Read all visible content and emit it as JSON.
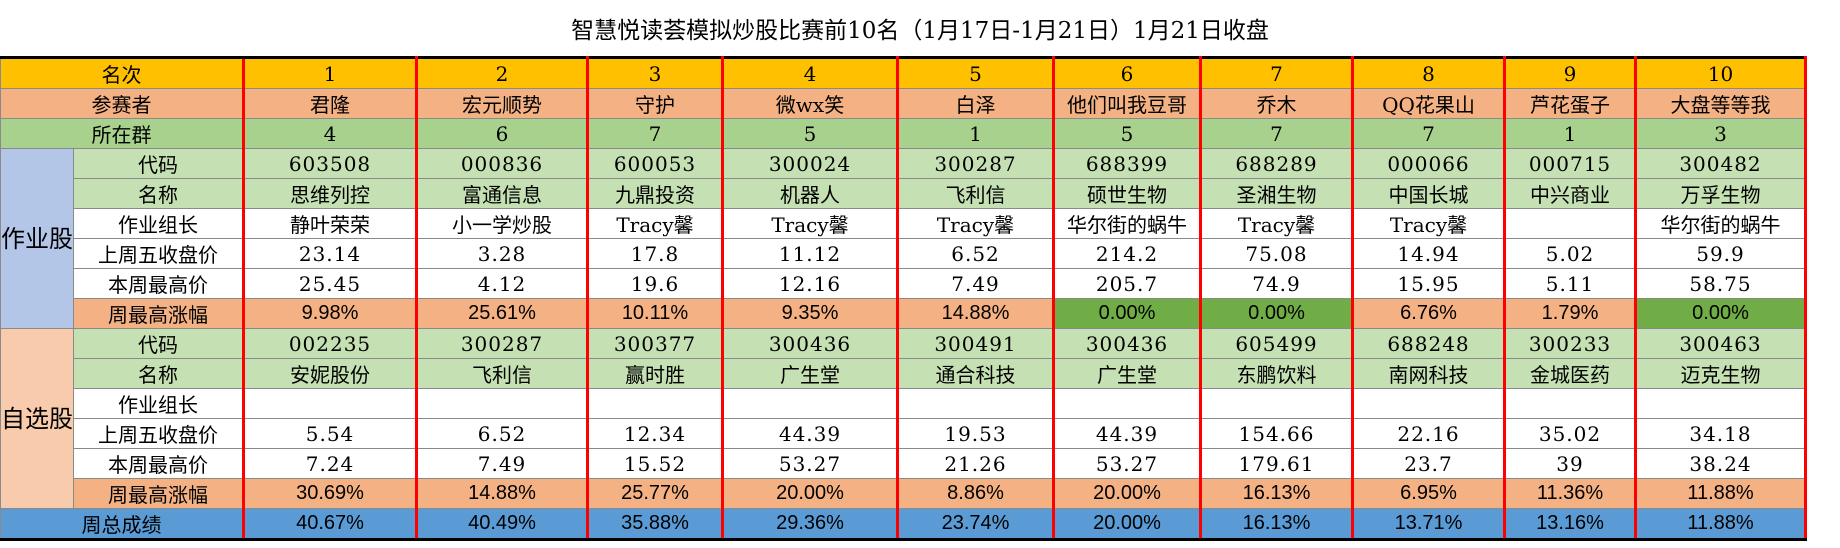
{
  "title": "智慧悦读荟模拟炒股比赛前10名（1月17日-1月21日）1月21日收盘",
  "header": {
    "rank_label": "名次",
    "player_label": "参赛者",
    "group_label": "所在群",
    "ranks": [
      "1",
      "2",
      "3",
      "4",
      "5",
      "6",
      "7",
      "8",
      "9",
      "10"
    ],
    "players": [
      "君隆",
      "宏元顺势",
      "守护",
      "微wx笑",
      "白泽",
      "他们叫我豆哥",
      "乔木",
      "QQ花果山",
      "芦花蛋子",
      "大盘等等我"
    ],
    "groups": [
      "4",
      "6",
      "7",
      "5",
      "1",
      "5",
      "7",
      "7",
      "1",
      "3"
    ]
  },
  "homework": {
    "side_label": "作业股",
    "code_label": "代码",
    "name_label": "名称",
    "leader_label": "作业组长",
    "prev_close_label": "上周五收盘价",
    "high_label": "本周最高价",
    "gain_label": "周最高涨幅",
    "codes": [
      "603508",
      "000836",
      "600053",
      "300024",
      "300287",
      "688399",
      "688289",
      "000066",
      "000715",
      "300482"
    ],
    "names": [
      "思维列控",
      "富通信息",
      "九鼎投资",
      "机器人",
      "飞利信",
      "硕世生物",
      "圣湘生物",
      "中国长城",
      "中兴商业",
      "万孚生物"
    ],
    "leaders": [
      "静叶荣荣",
      "小一学炒股",
      "Tracy馨",
      "Tracy馨",
      "Tracy馨",
      "华尔街的蜗牛",
      "Tracy馨",
      "Tracy馨",
      "",
      "华尔街的蜗牛"
    ],
    "prev_close": [
      "23.14",
      "3.28",
      "17.8",
      "11.12",
      "6.52",
      "214.2",
      "75.08",
      "14.94",
      "5.02",
      "59.9"
    ],
    "high": [
      "25.45",
      "4.12",
      "19.6",
      "12.16",
      "7.49",
      "205.7",
      "74.9",
      "15.95",
      "5.11",
      "58.75"
    ],
    "gain": [
      "9.98%",
      "25.61%",
      "10.11%",
      "9.35%",
      "14.88%",
      "0.00%",
      "0.00%",
      "6.76%",
      "1.79%",
      "0.00%"
    ]
  },
  "selfpick": {
    "side_label": "自选股",
    "code_label": "代码",
    "name_label": "名称",
    "leader_label": "作业组长",
    "prev_close_label": "上周五收盘价",
    "high_label": "本周最高价",
    "gain_label": "周最高涨幅",
    "codes": [
      "002235",
      "300287",
      "300377",
      "300436",
      "300491",
      "300436",
      "605499",
      "688248",
      "300233",
      "300463"
    ],
    "names": [
      "安妮股份",
      "飞利信",
      "赢时胜",
      "广生堂",
      "通合科技",
      "广生堂",
      "东鹏饮料",
      "南网科技",
      "金城医药",
      "迈克生物"
    ],
    "leaders": [
      "",
      "",
      "",
      "",
      "",
      "",
      "",
      "",
      "",
      ""
    ],
    "prev_close": [
      "5.54",
      "6.52",
      "12.34",
      "44.39",
      "19.53",
      "44.39",
      "154.66",
      "22.16",
      "35.02",
      "34.18"
    ],
    "high": [
      "7.24",
      "7.49",
      "15.52",
      "53.27",
      "21.26",
      "53.27",
      "179.61",
      "23.7",
      "39",
      "38.24"
    ],
    "gain": [
      "30.69%",
      "14.88%",
      "25.77%",
      "20.00%",
      "8.86%",
      "20.00%",
      "16.13%",
      "6.95%",
      "11.36%",
      "11.88%"
    ]
  },
  "total": {
    "label": "周总成绩",
    "values": [
      "40.67%",
      "40.49%",
      "35.88%",
      "29.36%",
      "23.74%",
      "20.00%",
      "16.13%",
      "13.71%",
      "13.16%",
      "11.88%"
    ]
  },
  "colors": {
    "rank_row": "#ffc000",
    "player_row": "#f4b183",
    "group_row": "#a9d18e",
    "info_row": "#c5e0b3",
    "gain_row": "#f4b183",
    "zero_gain": "#70ad47",
    "total_row": "#5b9bd5",
    "divider": "#ff0000"
  }
}
